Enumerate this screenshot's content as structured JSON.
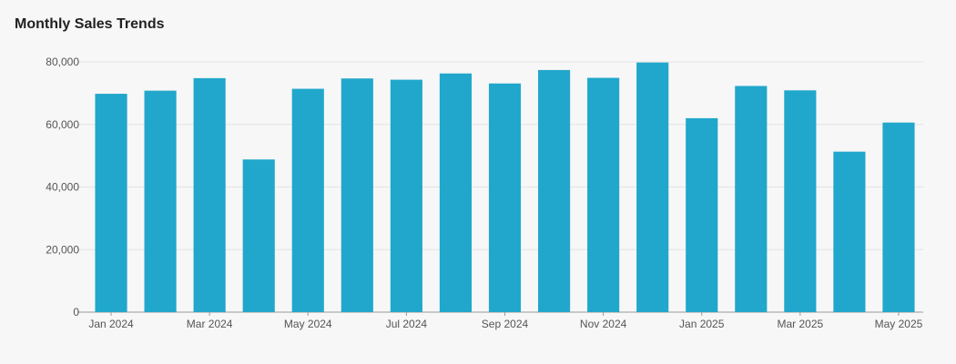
{
  "chart_data": {
    "type": "bar",
    "title": "Monthly Sales Trends",
    "xlabel": "",
    "ylabel": "",
    "ylim": [
      0,
      80000
    ],
    "yticks": [
      0,
      20000,
      40000,
      60000,
      80000
    ],
    "ytick_labels": [
      "0",
      "20,000",
      "40,000",
      "60,000",
      "80,000"
    ],
    "grid": true,
    "bar_color": "#21a7cb",
    "categories": [
      "2024-01",
      "2024-02",
      "2024-03",
      "2024-04",
      "2024-05",
      "2024-06",
      "2024-07",
      "2024-08",
      "2024-09",
      "2024-10",
      "2024-11",
      "2024-12",
      "2025-01",
      "2025-02",
      "2025-03",
      "2025-04",
      "2025-05"
    ],
    "values": [
      69800,
      70800,
      74800,
      48800,
      71400,
      74700,
      74300,
      76300,
      73100,
      77400,
      74900,
      79800,
      62000,
      72300,
      70900,
      51300,
      60600
    ],
    "xtick_labels": [
      "Jan 2024",
      "Mar 2024",
      "May 2024",
      "Jul 2024",
      "Sep 2024",
      "Nov 2024",
      "Jan 2025",
      "Mar 2025",
      "May 2025"
    ]
  }
}
